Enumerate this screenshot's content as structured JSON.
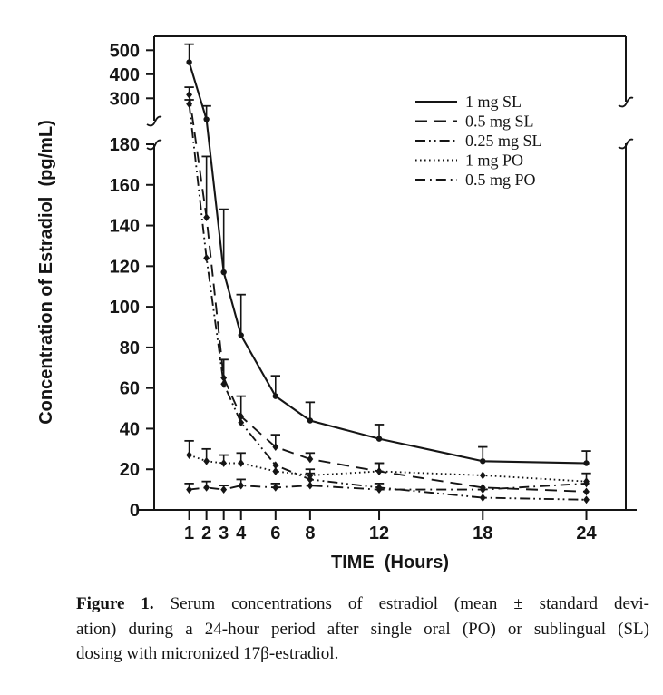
{
  "page": {
    "background": "#ffffff",
    "ink": "#151515"
  },
  "caption": {
    "label": "Figure 1.",
    "lines": [
      "Serum concentrations of estradiol (mean ± standard devi-",
      "ation) during a 24-hour period after single oral (PO) or sublingual (SL)",
      "dosing with micronized 17β-estradiol."
    ]
  },
  "chart_data": {
    "type": "line",
    "title": "",
    "xlabel": "TIME  (Hours)",
    "ylabel": "Concentration of Estradiol  (pg/mL)",
    "x": [
      1,
      2,
      3,
      4,
      6,
      8,
      12,
      18,
      24
    ],
    "x_ticks": [
      "1",
      "2",
      "3",
      "4",
      "6",
      "8",
      "12",
      "18",
      "24"
    ],
    "y_axis": {
      "broken": true,
      "lower_ticks": [
        0,
        20,
        40,
        60,
        80,
        100,
        120,
        140,
        160,
        180
      ],
      "upper_ticks": [
        300,
        400,
        500
      ],
      "lower_range": [
        0,
        180
      ],
      "upper_range": [
        300,
        520
      ],
      "break_between": [
        180,
        300
      ],
      "unit": "pg/mL"
    },
    "grid": false,
    "legend_position": "upper-right",
    "series": [
      {
        "name": "1 mg SL",
        "line_style": "solid",
        "marker": "circle",
        "values": [
          450,
          245,
          117,
          86,
          56,
          44,
          35,
          24,
          23
        ],
        "err_up": [
          75,
          35,
          31,
          20,
          10,
          9,
          7,
          7,
          6
        ]
      },
      {
        "name": "0.5 mg SL",
        "line_style": "long-dash",
        "marker": "diamond",
        "values": [
          315,
          144,
          65,
          46,
          31,
          25,
          19,
          11,
          9
        ],
        "err_up": [
          31,
          30,
          9,
          10,
          6,
          3,
          4,
          0,
          0
        ]
      },
      {
        "name": "0.25 mg SL",
        "line_style": "dash-dot-dot",
        "marker": "diamond",
        "values": [
          285,
          124,
          62,
          43,
          22,
          15,
          11,
          6,
          5
        ],
        "err_up": [
          11,
          0,
          0,
          0,
          0,
          3,
          2,
          0,
          0
        ]
      },
      {
        "name": "1 mg PO",
        "line_style": "dotted",
        "marker": "diamond",
        "values": [
          27,
          24,
          23,
          23,
          19,
          17,
          19,
          17,
          14
        ],
        "err_up": [
          7,
          6,
          4,
          5,
          0,
          3,
          4,
          0,
          4
        ]
      },
      {
        "name": "0.5 mg PO",
        "line_style": "dash-dot",
        "marker": "diamond",
        "values": [
          10,
          11,
          10,
          12,
          11,
          12,
          10,
          10,
          13
        ],
        "err_up": [
          3,
          3,
          2,
          3,
          2,
          0,
          0,
          0,
          0
        ]
      }
    ]
  }
}
